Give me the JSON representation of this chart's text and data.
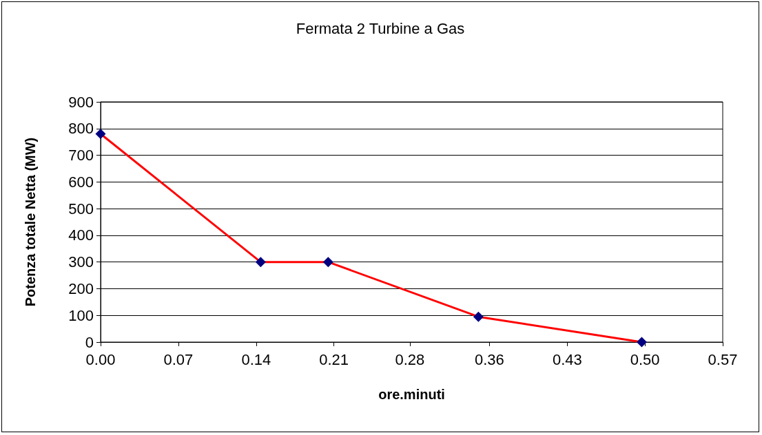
{
  "chart_data": {
    "type": "line",
    "title": "Fermata 2 Turbine a Gas",
    "xlabel": "ore.minuti",
    "ylabel": "Potenza totale Netta (MW)",
    "x": [
      0,
      0.147,
      0.209,
      0.347,
      0.497
    ],
    "series": [
      {
        "color": "#ff0000",
        "colors": [
          "#000080",
          "#000080",
          "#000080",
          "#000080",
          "#000080"
        ],
        "values": [
          780,
          300,
          300,
          95,
          0
        ]
      }
    ],
    "xlim": [
      0,
      0.5714
    ],
    "xticks": [
      {
        "value": 0,
        "label": "0.00"
      },
      {
        "value": 0.0714,
        "label": "0.07"
      },
      {
        "value": 0.1429,
        "label": "0.14"
      },
      {
        "value": 0.2143,
        "label": "0.21"
      },
      {
        "value": 0.284,
        "label": "0.28"
      },
      {
        "value": 0.3571,
        "label": "0.36"
      },
      {
        "value": 0.4286,
        "label": "0.43"
      },
      {
        "value": 0.5,
        "label": "0.50"
      },
      {
        "value": 0.5714,
        "label": "0.57"
      }
    ],
    "ylim": [
      0,
      900
    ],
    "yticks": [
      0,
      100,
      200,
      300,
      400,
      500,
      600,
      700,
      800,
      900
    ],
    "grid": "y",
    "marker": "diamond",
    "line_style": "solid"
  }
}
